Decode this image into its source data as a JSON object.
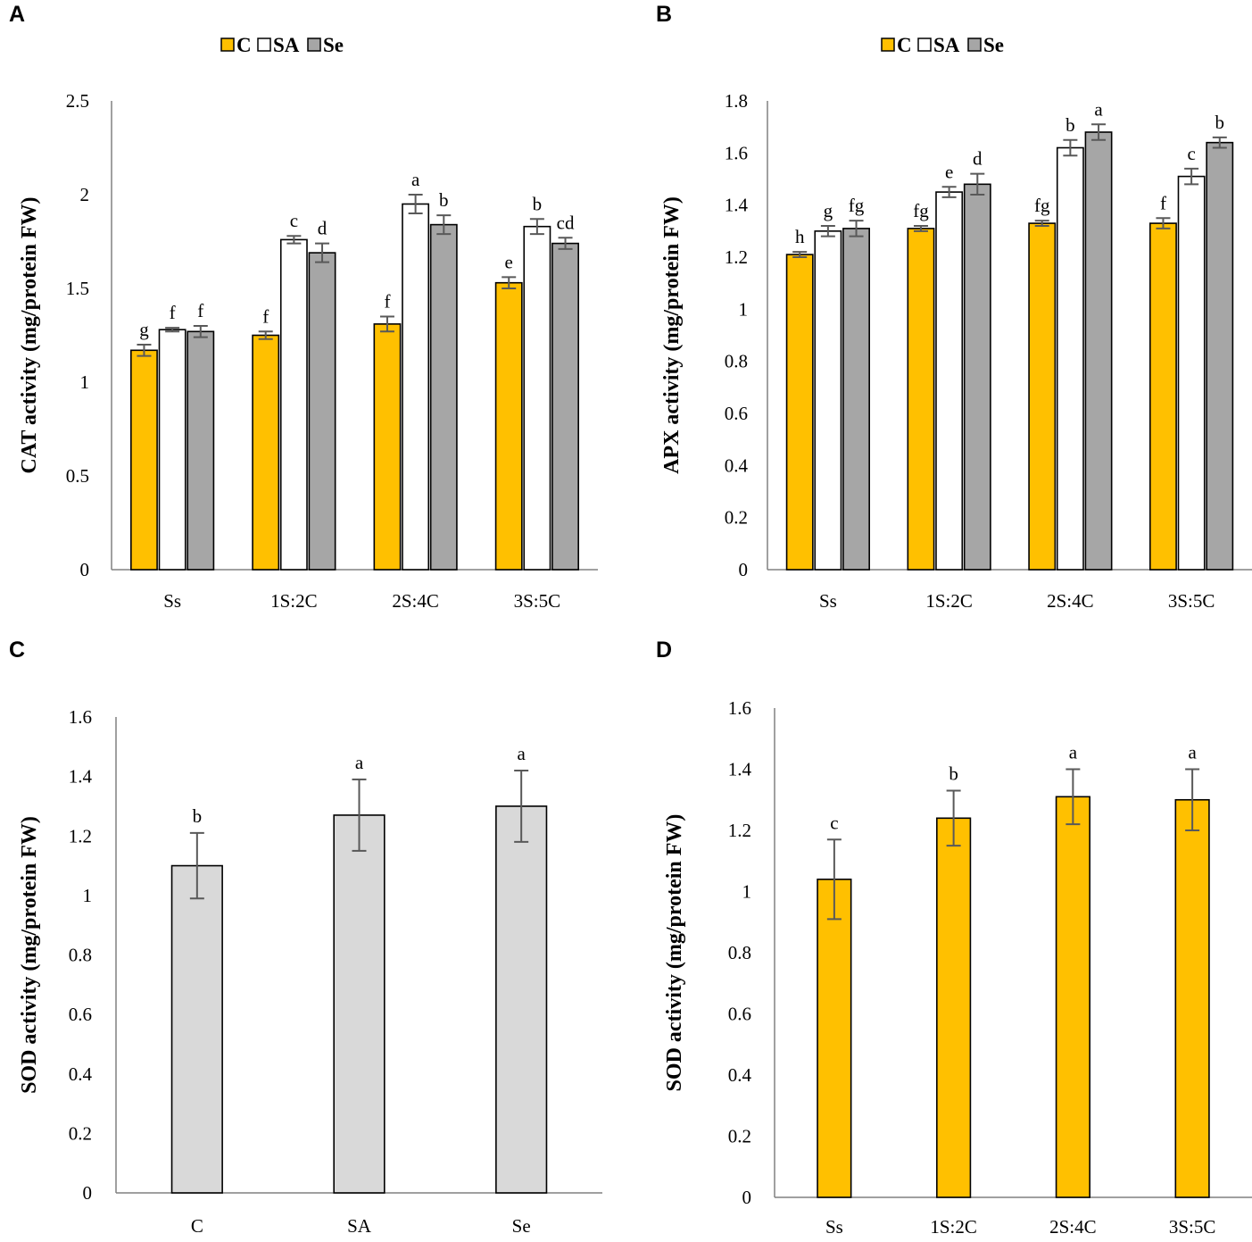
{
  "chart_data": [
    {
      "panel": "A",
      "type": "bar",
      "title": "",
      "xlabel": "",
      "ylabel": "CAT activity (mg/protein FW)",
      "ylim": [
        0,
        2.5
      ],
      "yticks": [
        0,
        0.5,
        1,
        1.5,
        2,
        2.5
      ],
      "ytick_labels": [
        "0",
        "0.5",
        "1",
        "1.5",
        "2",
        "2.5"
      ],
      "grid": false,
      "legend": "top-center",
      "categories": [
        "Ss",
        "1S:2C",
        "2S:4C",
        "3S:5C"
      ],
      "series": [
        {
          "name": "C",
          "color": "#FFC000",
          "values": [
            1.17,
            1.25,
            1.31,
            1.53
          ],
          "errors": [
            0.03,
            0.02,
            0.04,
            0.03
          ],
          "letters": [
            "g",
            "f",
            "f",
            "e"
          ]
        },
        {
          "name": "SA",
          "color": "#FFFFFF",
          "values": [
            1.28,
            1.76,
            1.95,
            1.83
          ],
          "errors": [
            0.01,
            0.02,
            0.05,
            0.04
          ],
          "letters": [
            "f",
            "c",
            "a",
            "b"
          ]
        },
        {
          "name": "Se",
          "color": "#A6A6A6",
          "values": [
            1.27,
            1.69,
            1.84,
            1.74
          ],
          "errors": [
            0.03,
            0.05,
            0.05,
            0.03
          ],
          "letters": [
            "f",
            "d",
            "b",
            "cd"
          ]
        }
      ]
    },
    {
      "panel": "B",
      "type": "bar",
      "title": "",
      "xlabel": "",
      "ylabel": "APX activity (mg/protein FW)",
      "ylim": [
        0,
        1.8
      ],
      "yticks": [
        0,
        0.2,
        0.4,
        0.6,
        0.8,
        1,
        1.2,
        1.4,
        1.6,
        1.8
      ],
      "ytick_labels": [
        "0",
        "0.2",
        "0.4",
        "0.6",
        "0.8",
        "1",
        "1.2",
        "1.4",
        "1.6",
        "1.8"
      ],
      "grid": false,
      "legend": "top-center",
      "categories": [
        "Ss",
        "1S:2C",
        "2S:4C",
        "3S:5C"
      ],
      "series": [
        {
          "name": "C",
          "color": "#FFC000",
          "values": [
            1.21,
            1.31,
            1.33,
            1.33
          ],
          "errors": [
            0.01,
            0.01,
            0.01,
            0.02
          ],
          "letters": [
            "h",
            "fg",
            "fg",
            "f"
          ]
        },
        {
          "name": "SA",
          "color": "#FFFFFF",
          "values": [
            1.3,
            1.45,
            1.62,
            1.51
          ],
          "errors": [
            0.02,
            0.02,
            0.03,
            0.03
          ],
          "letters": [
            "g",
            "e",
            "b",
            "c"
          ]
        },
        {
          "name": "Se",
          "color": "#A6A6A6",
          "values": [
            1.31,
            1.48,
            1.68,
            1.64
          ],
          "errors": [
            0.03,
            0.04,
            0.03,
            0.02
          ],
          "letters": [
            "fg",
            "d",
            "a",
            "b"
          ]
        }
      ]
    },
    {
      "panel": "C",
      "type": "bar",
      "title": "",
      "xlabel": "",
      "ylabel": "SOD activity (mg/protein FW)",
      "ylim": [
        0,
        1.6
      ],
      "yticks": [
        0,
        0.2,
        0.4,
        0.6,
        0.8,
        1,
        1.2,
        1.4,
        1.6
      ],
      "ytick_labels": [
        "0",
        "0.2",
        "0.4",
        "0.6",
        "0.8",
        "1",
        "1.2",
        "1.4",
        "1.6"
      ],
      "grid": false,
      "legend": "none",
      "categories": [
        "C",
        "SA",
        "Se"
      ],
      "series": [
        {
          "name": "SOD",
          "color": "#D9D9D9",
          "values": [
            1.1,
            1.27,
            1.3
          ],
          "errors": [
            0.11,
            0.12,
            0.12
          ],
          "letters": [
            "b",
            "a",
            "a"
          ]
        }
      ]
    },
    {
      "panel": "D",
      "type": "bar",
      "title": "",
      "xlabel": "",
      "ylabel": "SOD activity (mg/protein FW)",
      "ylim": [
        0,
        1.6
      ],
      "yticks": [
        0,
        0.2,
        0.4,
        0.6,
        0.8,
        1,
        1.2,
        1.4,
        1.6
      ],
      "ytick_labels": [
        "0",
        "0.2",
        "0.4",
        "0.6",
        "0.8",
        "1",
        "1.2",
        "1.4",
        "1.6"
      ],
      "grid": false,
      "legend": "none",
      "categories": [
        "Ss",
        "1S:2C",
        "2S:4C",
        "3S:5C"
      ],
      "series": [
        {
          "name": "SOD",
          "color": "#FFC000",
          "values": [
            1.04,
            1.24,
            1.31,
            1.3
          ],
          "errors": [
            0.13,
            0.09,
            0.09,
            0.1
          ],
          "letters": [
            "c",
            "b",
            "a",
            "a"
          ]
        }
      ]
    }
  ]
}
